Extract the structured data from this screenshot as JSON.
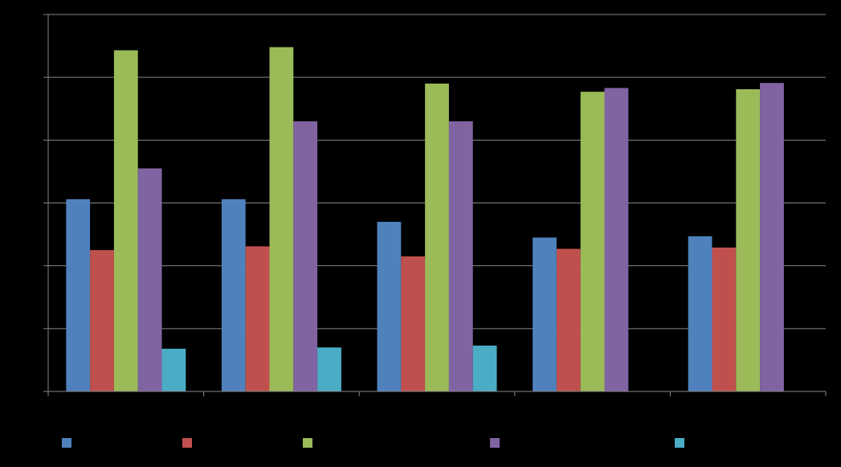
{
  "chart_data": {
    "type": "bar",
    "title": "",
    "xlabel": "",
    "ylabel": "",
    "ylim": [
      0,
      6
    ],
    "y_gridlines": [
      1,
      2,
      3,
      4,
      5,
      6
    ],
    "grid": true,
    "legend_position": "bottom",
    "categories": [
      "",
      "",
      "",
      "",
      ""
    ],
    "series": [
      {
        "color": "#4F81BD",
        "values": [
          3.06,
          3.06,
          2.7,
          2.45,
          2.47
        ]
      },
      {
        "color": "#C0504D",
        "values": [
          2.25,
          2.31,
          2.15,
          2.27,
          2.29
        ]
      },
      {
        "color": "#9BBB59",
        "values": [
          5.43,
          5.48,
          4.9,
          4.77,
          4.81
        ]
      },
      {
        "color": "#8064A2",
        "values": [
          3.55,
          4.3,
          4.3,
          4.83,
          4.91
        ]
      },
      {
        "color": "#4BACC6",
        "values": [
          0.68,
          0.7,
          0.73,
          null,
          null
        ]
      }
    ]
  }
}
